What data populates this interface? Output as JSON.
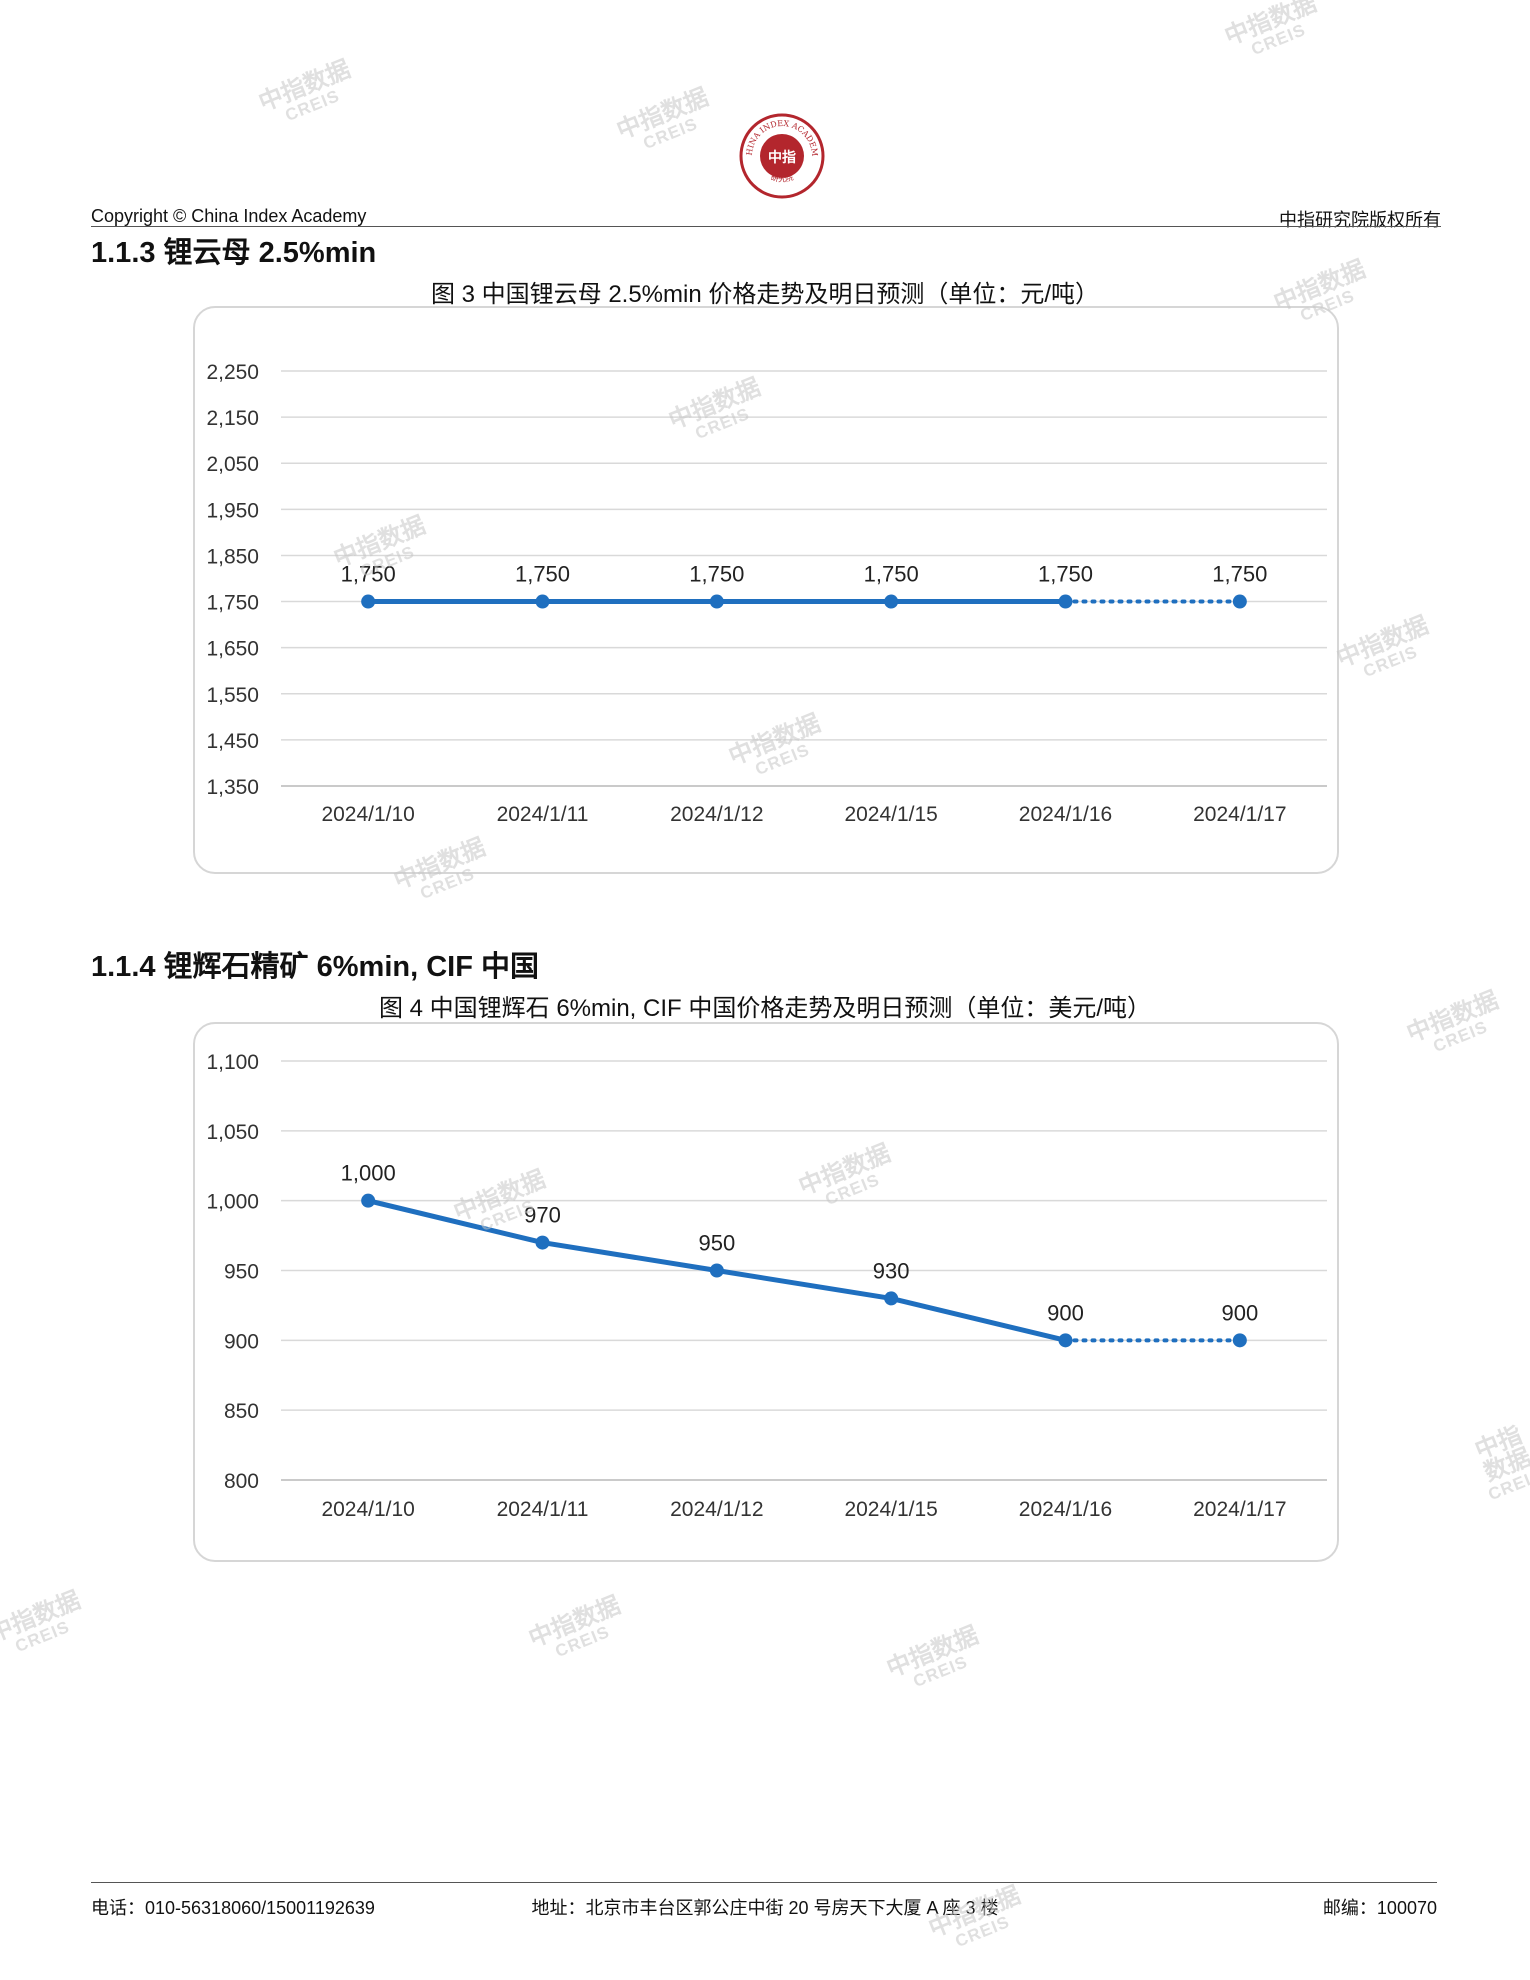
{
  "header": {
    "copyright": "Copyright © China Index Academy",
    "rights": "中指研究院版权所有",
    "logo_icon": "china-index-academy-seal-icon",
    "logo_text_top": "CHINA INDEX ACADEMY",
    "logo_text_center": "中指",
    "logo_text_bottom": "研究院",
    "brand_color": "#b3262d"
  },
  "watermark": {
    "line1": "中指数据",
    "line2": "CREIS"
  },
  "sections": [
    {
      "title": "1.1.3 锂云母 2.5%min",
      "figure_title": "图 3 中国锂云母 2.5%min 价格走势及明日预测（单位：元/吨）"
    },
    {
      "title": "1.1.4 锂辉石精矿 6%min, CIF 中国",
      "figure_title": "图 4 中国锂辉石 6%min, CIF 中国价格走势及明日预测（单位：美元/吨）"
    }
  ],
  "chart_data": [
    {
      "type": "line",
      "title": "图 3 中国锂云母 2.5%min 价格走势及明日预测（单位：元/吨）",
      "categories": [
        "2024/1/10",
        "2024/1/11",
        "2024/1/12",
        "2024/1/15",
        "2024/1/16",
        "2024/1/17"
      ],
      "values": [
        1750,
        1750,
        1750,
        1750,
        1750,
        1750
      ],
      "labels": [
        "1,750",
        "1,750",
        "1,750",
        "1,750",
        "1,750",
        "1,750"
      ],
      "yticks": [
        1350,
        1450,
        1550,
        1650,
        1750,
        1850,
        1950,
        2050,
        2150,
        2250
      ],
      "ytick_labels": [
        "1,350",
        "1,450",
        "1,550",
        "1,650",
        "1,750",
        "1,850",
        "1,950",
        "2,050",
        "2,150",
        "2,250"
      ],
      "ylim": [
        1350,
        2250
      ],
      "forecast_from_index": 4,
      "grid": true,
      "color": "#1f6fbf"
    },
    {
      "type": "line",
      "title": "图 4 中国锂辉石 6%min, CIF 中国价格走势及明日预测（单位：美元/吨）",
      "categories": [
        "2024/1/10",
        "2024/1/11",
        "2024/1/12",
        "2024/1/15",
        "2024/1/16",
        "2024/1/17"
      ],
      "values": [
        1000,
        970,
        950,
        930,
        900,
        900
      ],
      "labels": [
        "1,000",
        "970",
        "950",
        "930",
        "900",
        "900"
      ],
      "yticks": [
        800,
        850,
        900,
        950,
        1000,
        1050,
        1100
      ],
      "ytick_labels": [
        "800",
        "850",
        "900",
        "950",
        "1,000",
        "1,050",
        "1,100"
      ],
      "ylim": [
        800,
        1100
      ],
      "forecast_from_index": 4,
      "grid": true,
      "color": "#1f6fbf"
    }
  ],
  "footer": {
    "phone": "电话：010-56318060/15001192639",
    "address": "地址：北京市丰台区郭公庄中街 20 号房天下大厦 A 座 3 楼",
    "postcode": "邮编：100070"
  }
}
